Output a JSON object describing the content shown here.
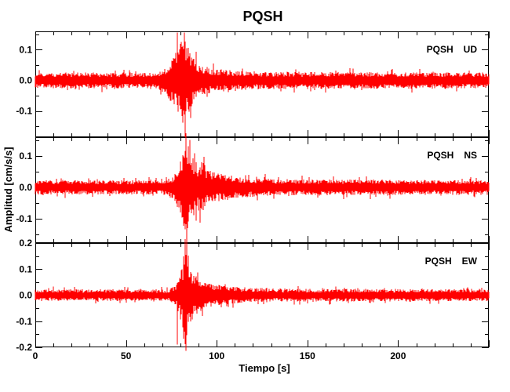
{
  "figure": {
    "background": "#ffffff"
  },
  "chart_data": {
    "type": "line",
    "title": "PQSH",
    "xlabel": "Tiempo [s]",
    "ylabel": "Amplitud [cm/s/s]",
    "x_range": [
      0,
      250
    ],
    "x_major_ticks": [
      0,
      50,
      100,
      150,
      200
    ],
    "x_major_step": 50,
    "x_minor_step": 10,
    "trace_color": "#ff0000",
    "axis_color": "#000000",
    "event_time_s": 82.5,
    "panels": [
      {
        "station": "PQSH",
        "component": "UD",
        "ylim": [
          -0.185,
          0.16
        ],
        "y_major_ticks": [
          0.1,
          0.0,
          -0.1
        ],
        "y_minor_step": 0.05,
        "noise_base": 0.028,
        "envelope": [
          [
            0,
            0.028
          ],
          [
            67,
            0.028
          ],
          [
            72,
            0.05
          ],
          [
            76,
            0.09
          ],
          [
            80,
            0.13
          ],
          [
            82,
            0.165
          ],
          [
            84,
            0.13
          ],
          [
            86,
            0.095
          ],
          [
            89,
            0.065
          ],
          [
            93,
            0.05
          ],
          [
            99,
            0.042
          ],
          [
            108,
            0.036
          ],
          [
            125,
            0.031
          ],
          [
            250,
            0.028
          ]
        ],
        "spikes": [
          {
            "t": 82.8,
            "v": -0.185
          },
          {
            "t": 82.3,
            "v": 0.156
          }
        ]
      },
      {
        "station": "PQSH",
        "component": "NS",
        "ylim": [
          -0.178,
          0.16
        ],
        "y_major_ticks": [
          0.1,
          0.0,
          -0.1
        ],
        "y_minor_step": 0.05,
        "noise_base": 0.025,
        "envelope": [
          [
            0,
            0.025
          ],
          [
            72,
            0.025
          ],
          [
            76,
            0.04
          ],
          [
            80,
            0.09
          ],
          [
            82,
            0.15
          ],
          [
            83.5,
            0.185
          ],
          [
            85,
            0.12
          ],
          [
            87,
            0.1
          ],
          [
            89.5,
            0.08
          ],
          [
            92.5,
            0.09
          ],
          [
            95,
            0.06
          ],
          [
            100,
            0.05
          ],
          [
            107,
            0.042
          ],
          [
            118,
            0.033
          ],
          [
            135,
            0.028
          ],
          [
            250,
            0.026
          ]
        ],
        "spikes": [
          {
            "t": 83.0,
            "v": 0.172
          },
          {
            "t": 83.6,
            "v": -0.17
          },
          {
            "t": 92.8,
            "v": 0.098
          }
        ]
      },
      {
        "station": "PQSH",
        "component": "EW",
        "ylim": [
          -0.2,
          0.2
        ],
        "y_major_ticks": [
          0.2,
          0.1,
          0.0,
          -0.1,
          -0.2
        ],
        "y_minor_step": 0.05,
        "noise_base": 0.024,
        "envelope": [
          [
            0,
            0.024
          ],
          [
            74,
            0.024
          ],
          [
            78,
            0.05
          ],
          [
            81,
            0.13
          ],
          [
            82.5,
            0.21
          ],
          [
            84,
            0.15
          ],
          [
            86,
            0.11
          ],
          [
            89,
            0.08
          ],
          [
            93,
            0.055
          ],
          [
            101,
            0.042
          ],
          [
            113,
            0.033
          ],
          [
            135,
            0.027
          ],
          [
            250,
            0.025
          ]
        ],
        "spikes": [
          {
            "t": 82.4,
            "v": 0.215
          },
          {
            "t": 83.1,
            "v": -0.213
          },
          {
            "t": 78.5,
            "v": -0.19
          }
        ]
      }
    ]
  }
}
